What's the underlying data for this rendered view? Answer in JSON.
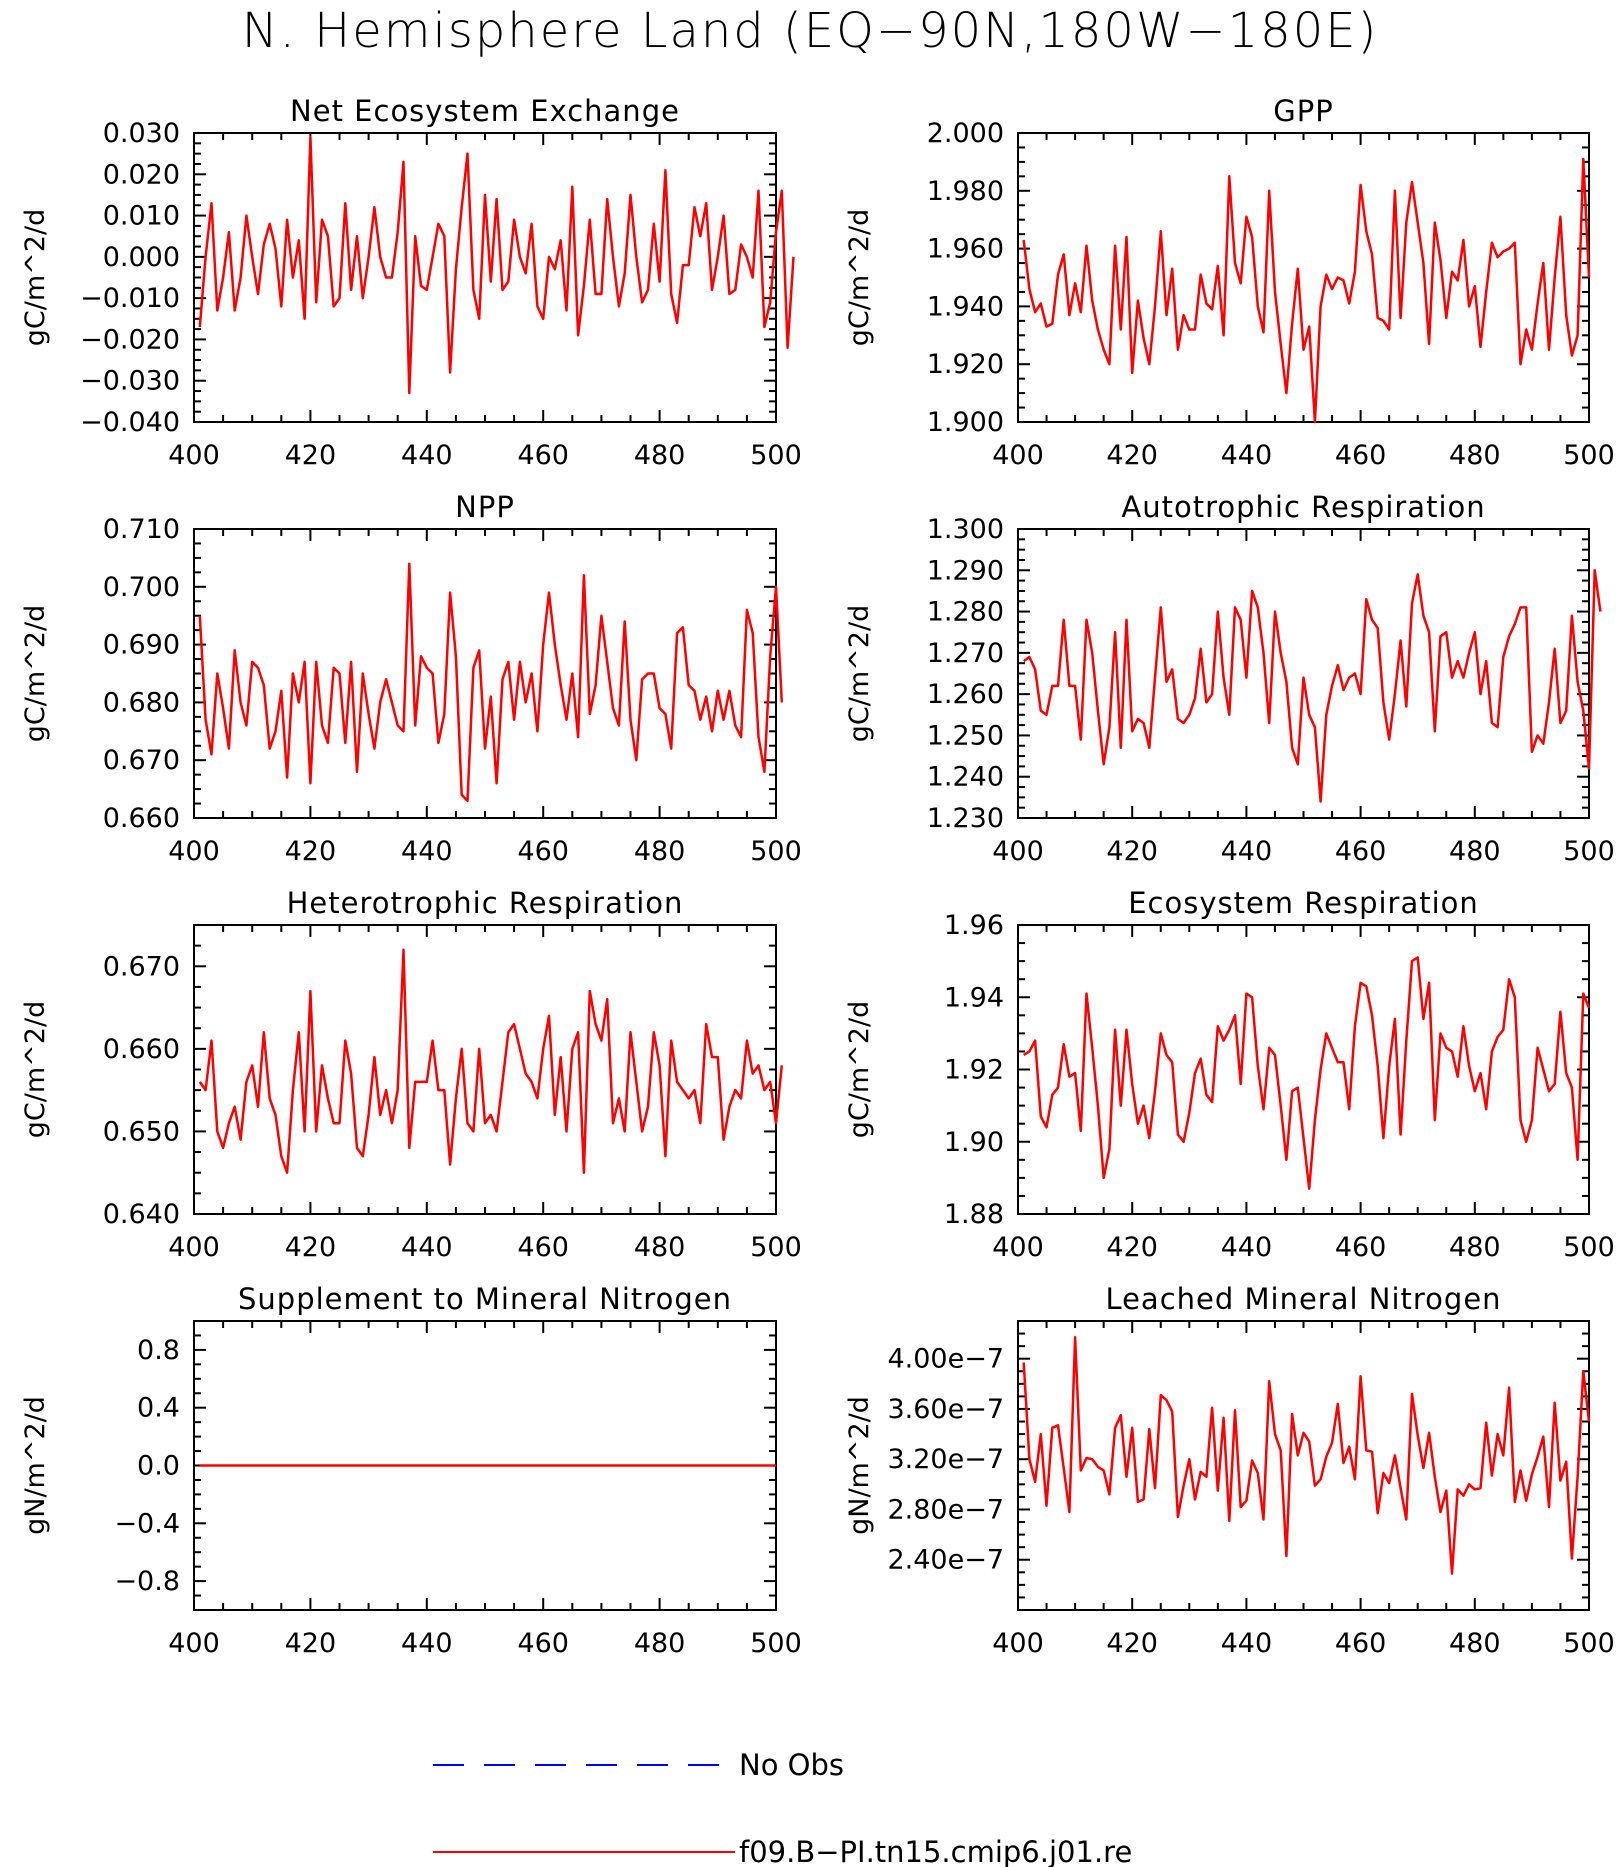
{
  "title": "N. Hemisphere Land (EQ−90N,180W−180E)",
  "legend": [
    {
      "label": "No Obs",
      "color": "#0000ff",
      "style": "dashed"
    },
    {
      "label": "f09.B−PI.tn15.cmip6.j01.re",
      "color": "#ff0000",
      "style": "solid"
    }
  ],
  "chart_data": [
    {
      "type": "line",
      "title": "Net Ecosystem Exchange",
      "ylabel": "gC/m^2/d",
      "xlim": [
        400,
        500
      ],
      "xticks": [
        "400",
        "420",
        "440",
        "460",
        "480",
        "500"
      ],
      "ylim": [
        -0.04,
        0.03
      ],
      "yticks": [
        "0.030",
        "0.020",
        "0.010",
        "0.000",
        "−0.010",
        "−0.020",
        "−0.030",
        "−0.040"
      ],
      "ytick_values": [
        0.03,
        0.02,
        0.01,
        0.0,
        -0.01,
        -0.02,
        -0.03,
        -0.04
      ],
      "series": [
        {
          "name": "f09.B−PI.tn15.cmip6.j01.re",
          "color": "#ff0000",
          "x_start": 401,
          "values": [
            -0.017,
            0.0,
            0.013,
            -0.013,
            -0.005,
            0.006,
            -0.013,
            -0.005,
            0.01,
            0.0,
            -0.009,
            0.003,
            0.008,
            0.002,
            -0.012,
            0.009,
            -0.005,
            0.004,
            -0.015,
            0.029,
            -0.011,
            0.009,
            0.005,
            -0.012,
            -0.01,
            0.013,
            -0.008,
            0.005,
            -0.01,
            0.0,
            0.012,
            0.0,
            -0.005,
            -0.005,
            0.006,
            0.023,
            -0.033,
            0.005,
            -0.007,
            -0.008,
            0.0,
            0.008,
            0.005,
            -0.028,
            -0.003,
            0.012,
            0.025,
            -0.008,
            -0.015,
            0.015,
            -0.006,
            0.014,
            -0.008,
            -0.006,
            0.009,
            0.0,
            -0.004,
            0.008,
            -0.012,
            -0.015,
            0.0,
            -0.003,
            0.004,
            -0.013,
            0.017,
            -0.019,
            -0.007,
            0.009,
            -0.009,
            -0.009,
            0.014,
            0.0,
            -0.012,
            -0.004,
            0.015,
            0.0,
            -0.011,
            -0.008,
            0.008,
            -0.006,
            0.021,
            -0.009,
            -0.016,
            -0.002,
            -0.002,
            0.012,
            0.005,
            0.013,
            -0.008,
            0.0,
            0.01,
            -0.009,
            -0.008,
            0.003,
            0.0,
            -0.005,
            0.016,
            -0.017,
            -0.011,
            0.006,
            0.016,
            -0.022,
            0.0
          ]
        }
      ]
    },
    {
      "type": "line",
      "title": "GPP",
      "ylabel": "gC/m^2/d",
      "xlim": [
        400,
        500
      ],
      "xticks": [
        "400",
        "420",
        "440",
        "460",
        "480",
        "500"
      ],
      "ylim": [
        1.9,
        2.0
      ],
      "yticks": [
        "2.000",
        "1.980",
        "1.960",
        "1.940",
        "1.920",
        "1.900"
      ],
      "ytick_values": [
        2.0,
        1.98,
        1.96,
        1.94,
        1.92,
        1.9
      ],
      "series": [
        {
          "name": "f09.B−PI.tn15.cmip6.j01.re",
          "color": "#ff0000",
          "x_start": 401,
          "values": [
            1.963,
            1.946,
            1.938,
            1.941,
            1.933,
            1.934,
            1.951,
            1.958,
            1.937,
            1.948,
            1.938,
            1.961,
            1.942,
            1.932,
            1.925,
            1.92,
            1.961,
            1.932,
            1.964,
            1.917,
            1.942,
            1.929,
            1.92,
            1.94,
            1.966,
            1.937,
            1.953,
            1.925,
            1.937,
            1.932,
            1.932,
            1.951,
            1.941,
            1.939,
            1.954,
            1.93,
            1.985,
            1.955,
            1.948,
            1.971,
            1.964,
            1.94,
            1.931,
            1.98,
            1.945,
            1.927,
            1.91,
            1.934,
            1.953,
            1.925,
            1.933,
            1.9,
            1.94,
            1.951,
            1.946,
            1.95,
            1.949,
            1.941,
            1.952,
            1.982,
            1.966,
            1.958,
            1.936,
            1.935,
            1.932,
            1.98,
            1.936,
            1.969,
            1.983,
            1.969,
            1.955,
            1.927,
            1.969,
            1.956,
            1.936,
            1.952,
            1.949,
            1.963,
            1.94,
            1.947,
            1.926,
            1.945,
            1.962,
            1.957,
            1.959,
            1.96,
            1.962,
            1.92,
            1.932,
            1.925,
            1.941,
            1.955,
            1.925,
            1.95,
            1.971,
            1.937,
            1.923,
            1.93,
            1.991,
            1.95
          ]
        }
      ]
    },
    {
      "type": "line",
      "title": "NPP",
      "ylabel": "gC/m^2/d",
      "xlim": [
        400,
        500
      ],
      "xticks": [
        "400",
        "420",
        "440",
        "460",
        "480",
        "500"
      ],
      "ylim": [
        0.66,
        0.71
      ],
      "yticks": [
        "0.710",
        "0.700",
        "0.690",
        "0.680",
        "0.670",
        "0.660"
      ],
      "ytick_values": [
        0.71,
        0.7,
        0.69,
        0.68,
        0.67,
        0.66
      ],
      "series": [
        {
          "name": "f09.B−PI.tn15.cmip6.j01.re",
          "color": "#ff0000",
          "x_start": 401,
          "values": [
            0.695,
            0.677,
            0.671,
            0.685,
            0.679,
            0.672,
            0.689,
            0.68,
            0.676,
            0.687,
            0.686,
            0.683,
            0.672,
            0.675,
            0.682,
            0.667,
            0.685,
            0.68,
            0.687,
            0.666,
            0.687,
            0.676,
            0.673,
            0.686,
            0.685,
            0.673,
            0.687,
            0.668,
            0.685,
            0.678,
            0.672,
            0.68,
            0.684,
            0.68,
            0.676,
            0.675,
            0.704,
            0.676,
            0.688,
            0.686,
            0.685,
            0.673,
            0.678,
            0.699,
            0.688,
            0.664,
            0.663,
            0.686,
            0.689,
            0.672,
            0.681,
            0.666,
            0.684,
            0.687,
            0.677,
            0.687,
            0.68,
            0.685,
            0.675,
            0.69,
            0.699,
            0.69,
            0.683,
            0.677,
            0.685,
            0.674,
            0.702,
            0.678,
            0.683,
            0.695,
            0.687,
            0.679,
            0.676,
            0.694,
            0.677,
            0.67,
            0.684,
            0.685,
            0.685,
            0.679,
            0.678,
            0.672,
            0.692,
            0.693,
            0.683,
            0.682,
            0.677,
            0.681,
            0.675,
            0.682,
            0.677,
            0.682,
            0.676,
            0.674,
            0.696,
            0.692,
            0.674,
            0.668,
            0.688,
            0.7,
            0.68
          ]
        }
      ]
    },
    {
      "type": "line",
      "title": "Autotrophic Respiration",
      "ylabel": "gC/m^2/d",
      "xlim": [
        400,
        500
      ],
      "xticks": [
        "400",
        "420",
        "440",
        "460",
        "480",
        "500"
      ],
      "ylim": [
        1.23,
        1.3
      ],
      "yticks": [
        "1.300",
        "1.290",
        "1.280",
        "1.270",
        "1.260",
        "1.250",
        "1.240",
        "1.230"
      ],
      "ytick_values": [
        1.3,
        1.29,
        1.28,
        1.27,
        1.26,
        1.25,
        1.24,
        1.23
      ],
      "series": [
        {
          "name": "f09.B−PI.tn15.cmip6.j01.re",
          "color": "#ff0000",
          "x_start": 401,
          "values": [
            1.268,
            1.269,
            1.266,
            1.256,
            1.255,
            1.262,
            1.262,
            1.278,
            1.262,
            1.262,
            1.249,
            1.278,
            1.27,
            1.256,
            1.243,
            1.252,
            1.275,
            1.247,
            1.278,
            1.251,
            1.254,
            1.253,
            1.247,
            1.264,
            1.281,
            1.263,
            1.266,
            1.254,
            1.253,
            1.255,
            1.259,
            1.271,
            1.258,
            1.26,
            1.28,
            1.264,
            1.255,
            1.281,
            1.278,
            1.264,
            1.285,
            1.281,
            1.27,
            1.253,
            1.28,
            1.27,
            1.263,
            1.247,
            1.243,
            1.264,
            1.255,
            1.252,
            1.234,
            1.255,
            1.262,
            1.267,
            1.261,
            1.264,
            1.265,
            1.26,
            1.283,
            1.278,
            1.276,
            1.258,
            1.249,
            1.26,
            1.273,
            1.257,
            1.282,
            1.289,
            1.279,
            1.275,
            1.251,
            1.274,
            1.275,
            1.264,
            1.268,
            1.264,
            1.27,
            1.275,
            1.26,
            1.268,
            1.253,
            1.252,
            1.269,
            1.274,
            1.277,
            1.281,
            1.281,
            1.246,
            1.25,
            1.248,
            1.258,
            1.271,
            1.253,
            1.256,
            1.279,
            1.263,
            1.256,
            1.242,
            1.29,
            1.28
          ]
        }
      ]
    },
    {
      "type": "line",
      "title": "Heterotrophic Respiration",
      "ylabel": "gC/m^2/d",
      "xlim": [
        400,
        500
      ],
      "xticks": [
        "400",
        "420",
        "440",
        "460",
        "480",
        "500"
      ],
      "ylim": [
        0.64,
        0.675
      ],
      "yticks": [
        "0.670",
        "0.660",
        "0.650",
        "0.640"
      ],
      "ytick_values": [
        0.67,
        0.66,
        0.65,
        0.64
      ],
      "series": [
        {
          "name": "f09.B−PI.tn15.cmip6.j01.re",
          "color": "#ff0000",
          "x_start": 401,
          "values": [
            0.656,
            0.655,
            0.661,
            0.65,
            0.648,
            0.651,
            0.653,
            0.649,
            0.656,
            0.658,
            0.653,
            0.662,
            0.654,
            0.652,
            0.647,
            0.645,
            0.655,
            0.662,
            0.65,
            0.667,
            0.65,
            0.658,
            0.654,
            0.651,
            0.651,
            0.661,
            0.657,
            0.648,
            0.647,
            0.652,
            0.659,
            0.652,
            0.655,
            0.651,
            0.655,
            0.672,
            0.648,
            0.656,
            0.656,
            0.656,
            0.661,
            0.655,
            0.655,
            0.646,
            0.654,
            0.66,
            0.651,
            0.65,
            0.66,
            0.651,
            0.652,
            0.65,
            0.656,
            0.662,
            0.663,
            0.66,
            0.657,
            0.656,
            0.654,
            0.66,
            0.664,
            0.652,
            0.659,
            0.65,
            0.66,
            0.662,
            0.645,
            0.667,
            0.663,
            0.661,
            0.666,
            0.651,
            0.654,
            0.65,
            0.662,
            0.656,
            0.65,
            0.653,
            0.662,
            0.658,
            0.647,
            0.661,
            0.656,
            0.655,
            0.654,
            0.655,
            0.651,
            0.663,
            0.659,
            0.659,
            0.649,
            0.653,
            0.655,
            0.654,
            0.661,
            0.657,
            0.658,
            0.655,
            0.656,
            0.651,
            0.658
          ]
        }
      ]
    },
    {
      "type": "line",
      "title": "Ecosystem Respiration",
      "ylabel": "gC/m^2/d",
      "xlim": [
        400,
        500
      ],
      "xticks": [
        "400",
        "420",
        "440",
        "460",
        "480",
        "500"
      ],
      "ylim": [
        1.88,
        1.96
      ],
      "yticks": [
        "1.96",
        "1.94",
        "1.92",
        "1.90",
        "1.88"
      ],
      "ytick_values": [
        1.96,
        1.94,
        1.92,
        1.9,
        1.88
      ],
      "series": [
        {
          "name": "f09.B−PI.tn15.cmip6.j01.re",
          "color": "#ff0000",
          "x_start": 401,
          "values": [
            1.924,
            1.925,
            1.928,
            1.907,
            1.904,
            1.913,
            1.915,
            1.927,
            1.918,
            1.919,
            1.903,
            1.941,
            1.926,
            1.91,
            1.89,
            1.898,
            1.931,
            1.91,
            1.931,
            1.916,
            1.905,
            1.91,
            1.901,
            1.914,
            1.93,
            1.924,
            1.922,
            1.902,
            1.9,
            1.908,
            1.919,
            1.923,
            1.913,
            1.911,
            1.932,
            1.928,
            1.931,
            1.935,
            1.916,
            1.941,
            1.94,
            1.921,
            1.909,
            1.926,
            1.924,
            1.91,
            1.895,
            1.914,
            1.915,
            1.901,
            1.887,
            1.906,
            1.92,
            1.93,
            1.926,
            1.922,
            1.922,
            1.909,
            1.932,
            1.944,
            1.943,
            1.935,
            1.921,
            1.901,
            1.921,
            1.934,
            1.902,
            1.928,
            1.95,
            1.951,
            1.934,
            1.944,
            1.906,
            1.93,
            1.926,
            1.925,
            1.918,
            1.932,
            1.921,
            1.914,
            1.919,
            1.909,
            1.925,
            1.929,
            1.931,
            1.945,
            1.94,
            1.906,
            1.9,
            1.906,
            1.926,
            1.92,
            1.914,
            1.916,
            1.936,
            1.919,
            1.915,
            1.895,
            1.941,
            1.937
          ]
        }
      ]
    },
    {
      "type": "line",
      "title": "Supplement to Mineral Nitrogen",
      "ylabel": "gN/m^2/d",
      "xlim": [
        400,
        500
      ],
      "xticks": [
        "400",
        "420",
        "440",
        "460",
        "480",
        "500"
      ],
      "ylim": [
        -1.0,
        1.0
      ],
      "yticks": [
        "0.8",
        "0.4",
        "0.0",
        "−0.4",
        "−0.8"
      ],
      "ytick_values": [
        0.8,
        0.4,
        0.0,
        -0.4,
        -0.8
      ],
      "series": [
        {
          "name": "f09.B−PI.tn15.cmip6.j01.re",
          "color": "#ff0000",
          "x": [
            401,
            500
          ],
          "values": [
            0.0,
            0.0
          ]
        }
      ]
    },
    {
      "type": "line",
      "title": "Leached Mineral Nitrogen",
      "ylabel": "gN/m^2/d",
      "xlim": [
        400,
        500
      ],
      "xticks": [
        "400",
        "420",
        "440",
        "460",
        "480",
        "500"
      ],
      "ylim": [
        2e-07,
        4.3e-07
      ],
      "yticks": [
        "4.00e−7",
        "3.60e−7",
        "3.20e−7",
        "2.80e−7",
        "2.40e−7"
      ],
      "ytick_values": [
        4e-07,
        3.6e-07,
        3.2e-07,
        2.8e-07,
        2.4e-07
      ],
      "series": [
        {
          "name": "f09.B−PI.tn15.cmip6.j01.re",
          "color": "#ff0000",
          "x_start": 401,
          "values": [
            3.97e-07,
            3.2e-07,
            3.02e-07,
            3.4e-07,
            2.83e-07,
            3.45e-07,
            3.47e-07,
            3.13e-07,
            2.78e-07,
            4.17e-07,
            3.11e-07,
            3.21e-07,
            3.2e-07,
            3.14e-07,
            3.11e-07,
            2.92e-07,
            3.45e-07,
            3.55e-07,
            3.06e-07,
            3.45e-07,
            2.86e-07,
            2.88e-07,
            3.44e-07,
            2.97e-07,
            3.71e-07,
            3.67e-07,
            3.58e-07,
            2.74e-07,
            2.99e-07,
            3.2e-07,
            2.88e-07,
            3.1e-07,
            3.06e-07,
            3.61e-07,
            2.95e-07,
            3.53e-07,
            2.71e-07,
            3.59e-07,
            2.82e-07,
            2.87e-07,
            3.19e-07,
            3.09e-07,
            2.72e-07,
            3.82e-07,
            3.4e-07,
            3.27e-07,
            2.43e-07,
            3.56e-07,
            3.23e-07,
            3.41e-07,
            3.34e-07,
            2.99e-07,
            3.04e-07,
            3.22e-07,
            3.33e-07,
            3.64e-07,
            3.17e-07,
            3.3e-07,
            3.04e-07,
            3.86e-07,
            3.27e-07,
            3.26e-07,
            2.77e-07,
            3.09e-07,
            3.01e-07,
            3.23e-07,
            2.97e-07,
            2.72e-07,
            3.72e-07,
            3.39e-07,
            3.13e-07,
            3.41e-07,
            3.06e-07,
            2.78e-07,
            2.95e-07,
            2.29e-07,
            2.96e-07,
            2.91e-07,
            3e-07,
            2.96e-07,
            2.97e-07,
            3.49e-07,
            3.07e-07,
            3.4e-07,
            3.23e-07,
            3.77e-07,
            2.86e-07,
            3.11e-07,
            2.87e-07,
            3.08e-07,
            3.22e-07,
            3.38e-07,
            2.82e-07,
            3.65e-07,
            3.03e-07,
            3.18e-07,
            2.41e-07,
            3.06e-07,
            3.9e-07,
            3.5e-07
          ]
        }
      ]
    }
  ]
}
